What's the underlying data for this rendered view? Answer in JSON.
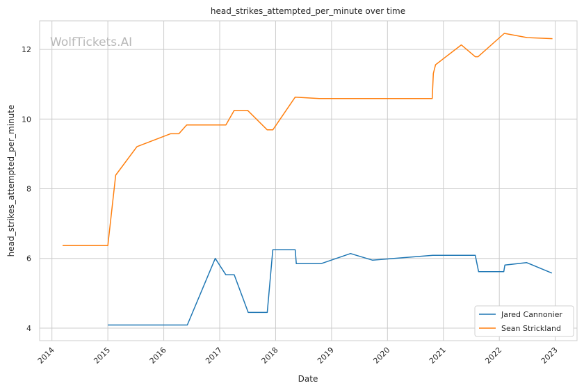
{
  "watermark": "WolfTickets.AI",
  "chart_data": {
    "type": "line",
    "title": "head_strikes_attempted_per_minute over time",
    "xlabel": "Date",
    "ylabel": "head_strikes_attempted_per_minute",
    "xlim": [
      2013.78,
      2023.39
    ],
    "ylim": [
      3.64,
      12.82
    ],
    "xticks": [
      2014,
      2015,
      2016,
      2017,
      2018,
      2019,
      2020,
      2021,
      2022,
      2023
    ],
    "xtick_labels": [
      "2014",
      "2015",
      "2016",
      "2017",
      "2018",
      "2019",
      "2020",
      "2021",
      "2022",
      "2023"
    ],
    "yticks": [
      4,
      6,
      8,
      10,
      12
    ],
    "ytick_labels": [
      "4",
      "6",
      "8",
      "10",
      "12"
    ],
    "grid": true,
    "legend_position": "lower-right",
    "series": [
      {
        "name": "Jared Cannonier",
        "color": "#1f77b4",
        "x": [
          2015.0,
          2016.42,
          2016.92,
          2017.11,
          2017.26,
          2017.51,
          2017.85,
          2017.95,
          2018.35,
          2018.37,
          2018.81,
          2019.34,
          2019.73,
          2020.81,
          2021.57,
          2021.63,
          2022.08,
          2022.1,
          2022.49,
          2022.94
        ],
        "y": [
          4.09,
          4.09,
          6.0,
          5.53,
          5.53,
          4.45,
          4.45,
          6.25,
          6.25,
          5.85,
          5.85,
          6.14,
          5.95,
          6.09,
          6.09,
          5.62,
          5.62,
          5.81,
          5.88,
          5.58
        ]
      },
      {
        "name": "Sean Strickland",
        "color": "#ff7f0e",
        "x": [
          2014.19,
          2015.0,
          2015.14,
          2015.52,
          2016.12,
          2016.27,
          2016.41,
          2017.11,
          2017.26,
          2017.5,
          2017.85,
          2017.95,
          2018.35,
          2018.78,
          2020.8,
          2020.82,
          2020.86,
          2021.32,
          2021.57,
          2021.62,
          2022.09,
          2022.5,
          2022.95
        ],
        "y": [
          6.37,
          6.37,
          8.39,
          9.21,
          9.58,
          9.58,
          9.83,
          9.83,
          10.25,
          10.25,
          9.69,
          9.69,
          10.63,
          10.59,
          10.59,
          11.31,
          11.56,
          12.13,
          11.79,
          11.79,
          12.46,
          12.34,
          12.31
        ]
      }
    ]
  }
}
